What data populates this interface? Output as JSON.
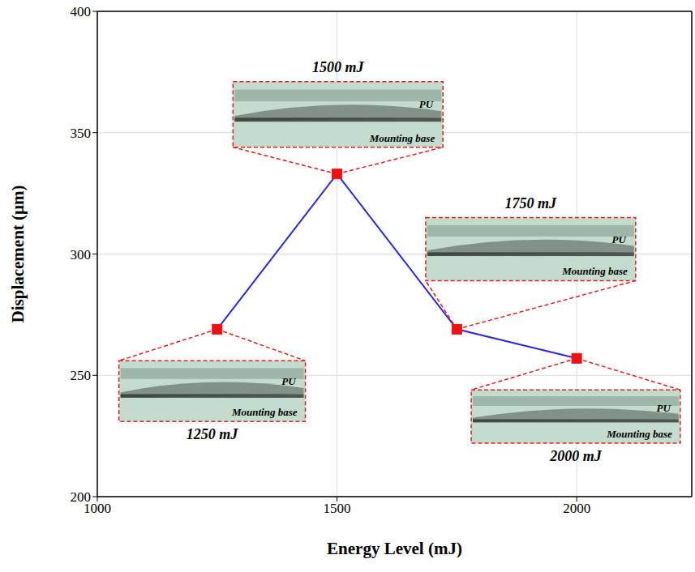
{
  "chart_data": {
    "type": "line",
    "x_label": "Energy Level (mJ)",
    "y_label": "Displacement (μm)",
    "x": [
      1250,
      1500,
      1750,
      2000
    ],
    "series": [
      {
        "color": "#2a2ae0",
        "values": [
          269,
          333,
          269,
          257
        ],
        "marker": "square"
      }
    ],
    "xlim": [
      1000,
      2240
    ],
    "xticks": [
      1000,
      1500,
      2000
    ],
    "ylim": [
      200,
      400
    ],
    "yticks": [
      200,
      250,
      300,
      350,
      400
    ],
    "grid": true,
    "annotations": [
      {
        "label": "1250 mJ",
        "texts": [
          "PU",
          "Mounting base"
        ]
      },
      {
        "label": "1500 mJ",
        "texts": [
          "PU",
          "Mounting base"
        ]
      },
      {
        "label": "1750 mJ",
        "texts": [
          "PU",
          "Mounting base"
        ]
      },
      {
        "label": "2000 mJ",
        "texts": [
          "PU",
          "Mounting base"
        ]
      }
    ]
  }
}
